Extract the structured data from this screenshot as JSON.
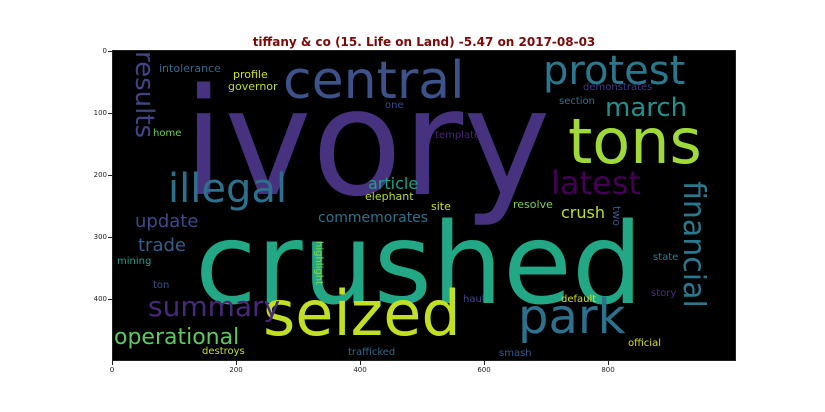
{
  "title": "tiffany & co (15. Life on Land) -5.47 on 2017-08-03",
  "colors": {
    "title": "#7a0a0a",
    "background": "#000000"
  },
  "axes": {
    "y_ticks": [
      "0",
      "100",
      "200",
      "300",
      "400"
    ],
    "x_ticks": [
      "0",
      "200",
      "400",
      "600",
      "800"
    ]
  },
  "words": [
    {
      "text": "ivory",
      "color": "#46327e"
    },
    {
      "text": "crushed",
      "color": "#22a884"
    },
    {
      "text": "seized",
      "color": "#c2df23"
    },
    {
      "text": "tons",
      "color": "#a0da39"
    },
    {
      "text": "central",
      "color": "#3b528b"
    },
    {
      "text": "protest",
      "color": "#2a788e"
    },
    {
      "text": "park",
      "color": "#2c728e"
    },
    {
      "text": "illegal",
      "color": "#2d708e"
    },
    {
      "text": "latest",
      "color": "#440154"
    },
    {
      "text": "financial",
      "color": "#2a788e"
    },
    {
      "text": "march",
      "color": "#21918c"
    },
    {
      "text": "results",
      "color": "#414487"
    },
    {
      "text": "summary",
      "color": "#482878"
    },
    {
      "text": "operational",
      "color": "#5ec962"
    },
    {
      "text": "update",
      "color": "#3e4a89"
    },
    {
      "text": "trade",
      "color": "#355f8d"
    },
    {
      "text": "article",
      "color": "#1fa187"
    },
    {
      "text": "crush",
      "color": "#bddf26"
    },
    {
      "text": "commemorates",
      "color": "#2c728e"
    },
    {
      "text": "elephant",
      "color": "#b5de2b"
    },
    {
      "text": "site",
      "color": "#c8e020"
    },
    {
      "text": "resolve",
      "color": "#7ad151"
    },
    {
      "text": "two",
      "color": "#3b528b"
    },
    {
      "text": "intolerance",
      "color": "#31688e"
    },
    {
      "text": "profile",
      "color": "#d0e11c"
    },
    {
      "text": "governor",
      "color": "#bddf26"
    },
    {
      "text": "one",
      "color": "#3e4989"
    },
    {
      "text": "home",
      "color": "#6ece58"
    },
    {
      "text": "template",
      "color": "#482475"
    },
    {
      "text": "section",
      "color": "#2c728e"
    },
    {
      "text": "demonstrates",
      "color": "#453781"
    },
    {
      "text": "mining",
      "color": "#1f9e89"
    },
    {
      "text": "ton",
      "color": "#3b528b"
    },
    {
      "text": "highlight",
      "color": "#86d549"
    },
    {
      "text": "state",
      "color": "#26828e"
    },
    {
      "text": "story",
      "color": "#472d7b"
    },
    {
      "text": "haul",
      "color": "#3e4989"
    },
    {
      "text": "default",
      "color": "#d2e21b"
    },
    {
      "text": "destroys",
      "color": "#c0df25"
    },
    {
      "text": "trafficked",
      "color": "#306a8e"
    },
    {
      "text": "smash",
      "color": "#375a8c"
    },
    {
      "text": "official",
      "color": "#d8e219"
    }
  ]
}
